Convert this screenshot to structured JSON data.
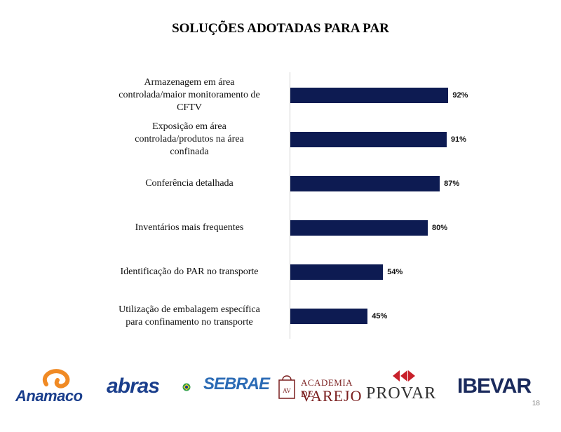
{
  "chart_data": {
    "type": "bar",
    "orientation": "horizontal",
    "title": "SOLUÇÕES ADOTADAS PARA PAR",
    "categories": [
      "Armazenagem em área\ncontrolada/maior monitoramento de\nCFTV",
      "Exposição em área\ncontrolada/produtos na área\nconfinada",
      "Conferência detalhada",
      "Inventários mais frequentes",
      "Identificação do PAR no transporte",
      "Utilização de embalagem específica\npara confinamento no transporte"
    ],
    "values": [
      92,
      91,
      87,
      80,
      54,
      45
    ],
    "value_labels": [
      "92%",
      "91%",
      "87%",
      "80%",
      "54%",
      "45%"
    ],
    "xlim": [
      0,
      100
    ],
    "bar_color": "#0d1b52",
    "grid": false,
    "legend": "none"
  },
  "logos": {
    "anamaco": "Anamaco",
    "abras": "abras",
    "sebrae": "SEBRAE",
    "academia_top": "ACADEMIA DE",
    "academia_bottom": "VAREJO",
    "academia_mark": "AV",
    "provar": "PROVAR",
    "ibevar": "IBEVAR"
  },
  "page_number": "18"
}
